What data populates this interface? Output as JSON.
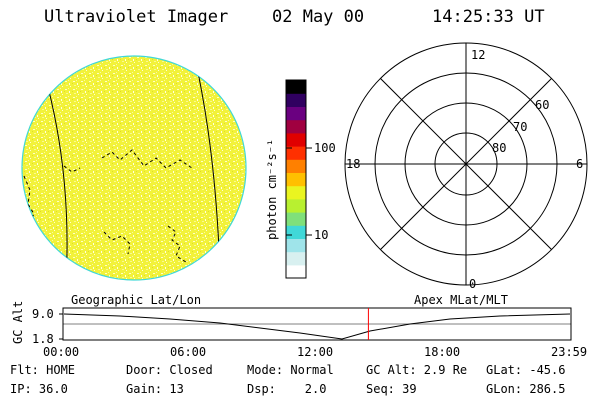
{
  "header": {
    "instrument": "Ultraviolet Imager",
    "date": "02 May 00",
    "time": "14:25:33 UT"
  },
  "colorbar": {
    "unit_label": "photon cm⁻²s⁻¹",
    "tick_high": "100",
    "tick_low": "10",
    "colors": [
      "#ffffff",
      "#d8f0f0",
      "#9fe4ea",
      "#40d8d8",
      "#7fe07a",
      "#b8f030",
      "#eaf520",
      "#ffc000",
      "#ff8000",
      "#ff3000",
      "#e00000",
      "#a00040",
      "#6a0080",
      "#300060",
      "#000000"
    ]
  },
  "geo_panel": {
    "label": "Geographic Lat/Lon",
    "disk_color": "#f4f44a",
    "rim_color": "#40d8d8"
  },
  "polar_panel": {
    "label": "Apex MLat/MLT",
    "mlt_top": "12",
    "mlt_left": "18",
    "mlt_right": "6",
    "mlt_bottom": "0",
    "lat_60": "60",
    "lat_70": "70",
    "lat_80": "80"
  },
  "altitude_plot": {
    "ylabel": "GC Alt",
    "y_top": "9.0",
    "y_bottom": "1.8",
    "x_ticks": [
      "00:00",
      "06:00",
      "12:00",
      "18:00",
      "23:59"
    ],
    "current_time_marker_hours": 14.43,
    "marker_color": "#ff0000"
  },
  "footer": {
    "row1": {
      "flt": "Flt: HOME",
      "door": "Door: Closed",
      "mode": "Mode: Normal",
      "gc_alt": "GC Alt: 2.9 Re",
      "glat": "GLat: -45.6"
    },
    "row2": {
      "ip": "IP: 36.0",
      "gain": "Gain: 13",
      "dsp": "Dsp:    2.0",
      "seq": "Seq: 39",
      "glon": "GLon: 286.5"
    }
  }
}
